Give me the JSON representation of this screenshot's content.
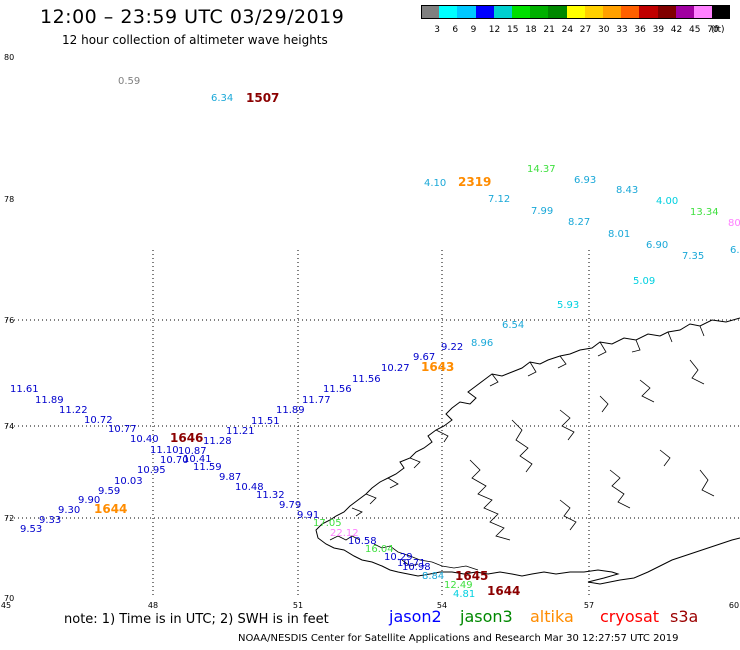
{
  "title": "12:00 – 23:59 UTC 03/29/2019",
  "subtitle": "12 hour collection of altimeter wave heights",
  "colorbar": {
    "labels": [
      "3",
      "6",
      "9",
      "12",
      "15",
      "18",
      "21",
      "24",
      "27",
      "30",
      "33",
      "36",
      "39",
      "42",
      "45",
      "70"
    ],
    "unit": "(ft)",
    "colors": [
      "#808080",
      "#00ffff",
      "#00c8ff",
      "#0000ff",
      "#00d0d0",
      "#00e000",
      "#00b000",
      "#008800",
      "#ffff00",
      "#ffd000",
      "#ffa000",
      "#ff6000",
      "#c00000",
      "#800000",
      "#a000a0",
      "#ff80ff",
      "#000000"
    ]
  },
  "axes": {
    "lon_labels": [
      "45",
      "48",
      "51",
      "54",
      "57",
      "60"
    ],
    "lat_labels": [
      "80",
      "78",
      "76",
      "74",
      "72",
      "70"
    ]
  },
  "note": "note: 1) Time is in UTC; 2) SWH is in feet",
  "satellites": [
    {
      "name": "jason2",
      "color": "#0000ff"
    },
    {
      "name": "jason3",
      "color": "#008800"
    },
    {
      "name": "altika",
      "color": "#ff8c00"
    },
    {
      "name": "cryosat",
      "color": "#ff0000"
    },
    {
      "name": "s3a",
      "color": "#9b0000"
    }
  ],
  "credit": "NOAA/NESDIS Center for Satellite Applications and Research    Mar 30 12:27:57 UTC 2019",
  "observations": [
    {
      "v": "0.59",
      "c": "#808080"
    },
    {
      "v": "6.34",
      "c": "#1aa8d8"
    },
    {
      "v": "4.10",
      "c": "#1aa8d8"
    },
    {
      "v": "7.12",
      "c": "#1aa8d8"
    },
    {
      "v": "14.37",
      "c": "#40e040"
    },
    {
      "v": "6.93",
      "c": "#1aa8d8"
    },
    {
      "v": "8.43",
      "c": "#1aa8d8"
    },
    {
      "v": "7.99",
      "c": "#1aa8d8"
    },
    {
      "v": "4.00",
      "c": "#00d0e0"
    },
    {
      "v": "13.34",
      "c": "#40e040"
    },
    {
      "v": "8.27",
      "c": "#1aa8d8"
    },
    {
      "v": "8.01",
      "c": "#1aa8d8"
    },
    {
      "v": "6.90",
      "c": "#1aa8d8"
    },
    {
      "v": "7.35",
      "c": "#1aa8d8"
    },
    {
      "v": "5.09",
      "c": "#00d0e0"
    },
    {
      "v": "5.93",
      "c": "#00d0e0"
    },
    {
      "v": "6.54",
      "c": "#1aa8d8"
    },
    {
      "v": "8.96",
      "c": "#1aa8d8"
    },
    {
      "v": "9.22",
      "c": "#0000cc"
    },
    {
      "v": "9.67",
      "c": "#0000cc"
    },
    {
      "v": "10.27",
      "c": "#0000cc"
    },
    {
      "v": "11.56",
      "c": "#0000cc"
    },
    {
      "v": "11.56",
      "c": "#0000cc"
    },
    {
      "v": "11.77",
      "c": "#0000cc"
    },
    {
      "v": "11.89",
      "c": "#0000cc"
    },
    {
      "v": "11.51",
      "c": "#0000cc"
    },
    {
      "v": "11.21",
      "c": "#0000cc"
    },
    {
      "v": "11.28",
      "c": "#0000cc"
    },
    {
      "v": "11.61",
      "c": "#0000cc"
    },
    {
      "v": "11.89",
      "c": "#0000cc"
    },
    {
      "v": "11.22",
      "c": "#0000cc"
    },
    {
      "v": "10.72",
      "c": "#0000cc"
    },
    {
      "v": "10.77",
      "c": "#0000cc"
    },
    {
      "v": "10.40",
      "c": "#0000cc"
    },
    {
      "v": "11.10",
      "c": "#0000cc"
    },
    {
      "v": "10.87",
      "c": "#0000cc"
    },
    {
      "v": "10.70",
      "c": "#0000cc"
    },
    {
      "v": "10.41",
      "c": "#0000cc"
    },
    {
      "v": "10.95",
      "c": "#0000cc"
    },
    {
      "v": "10.03",
      "c": "#0000cc"
    },
    {
      "v": "9.59",
      "c": "#0000cc"
    },
    {
      "v": "9.90",
      "c": "#0000cc"
    },
    {
      "v": "9.30",
      "c": "#0000cc"
    },
    {
      "v": "9.33",
      "c": "#0000cc"
    },
    {
      "v": "9.53",
      "c": "#0000cc"
    },
    {
      "v": "11.59",
      "c": "#0000cc"
    },
    {
      "v": "9.87",
      "c": "#0000cc"
    },
    {
      "v": "10.48",
      "c": "#0000cc"
    },
    {
      "v": "11.32",
      "c": "#0000cc"
    },
    {
      "v": "9.79",
      "c": "#0000cc"
    },
    {
      "v": "9.91",
      "c": "#0000cc"
    },
    {
      "v": "17.05",
      "c": "#40e040"
    },
    {
      "v": "22.12",
      "c": "#ff80ff"
    },
    {
      "v": "10.58",
      "c": "#0000cc"
    },
    {
      "v": "16.04",
      "c": "#40e040"
    },
    {
      "v": "10.29",
      "c": "#0000cc"
    },
    {
      "v": "10.71",
      "c": "#0000cc"
    },
    {
      "v": "10.98",
      "c": "#0000cc"
    },
    {
      "v": "8.84",
      "c": "#1aa8d8"
    },
    {
      "v": "12.49",
      "c": "#40e040"
    },
    {
      "v": "4.81",
      "c": "#00d0e0"
    },
    {
      "v": "80",
      "c": "#ff80ff"
    },
    {
      "v": "6.",
      "c": "#1aa8d8"
    }
  ],
  "passes": [
    {
      "v": "1507",
      "c": "#8b0000"
    },
    {
      "v": "2319",
      "c": "#ff8c00"
    },
    {
      "v": "1643",
      "c": "#ff8c00"
    },
    {
      "v": "1646",
      "c": "#8b0000"
    },
    {
      "v": "1644",
      "c": "#ff8c00"
    },
    {
      "v": "1645",
      "c": "#8b0000"
    },
    {
      "v": "1644",
      "c": "#8b0000"
    }
  ]
}
